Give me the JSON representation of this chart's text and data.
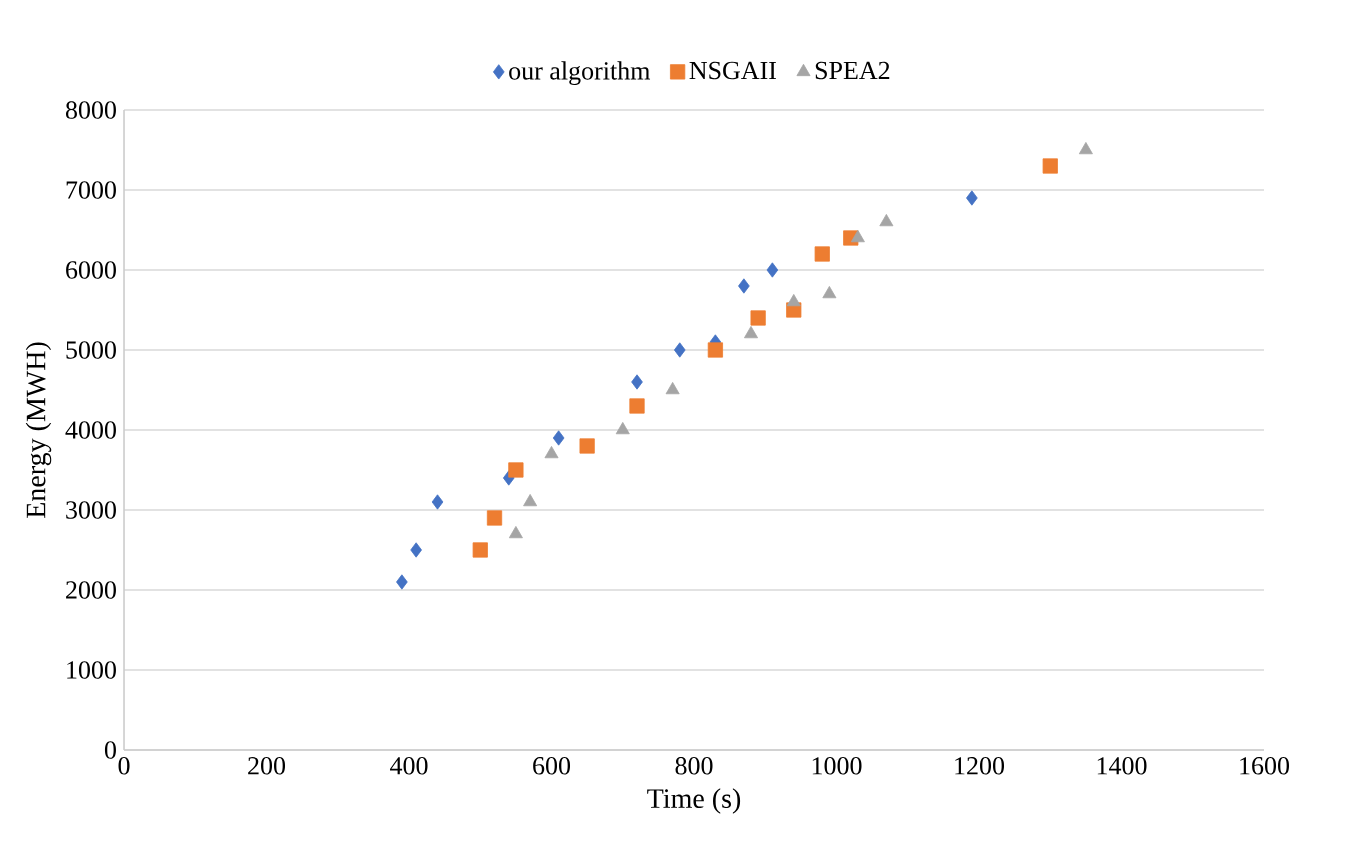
{
  "chart_data": {
    "type": "scatter",
    "xlabel": "Time (s)",
    "ylabel": "Energy (MWH)",
    "xlim": [
      0,
      1600
    ],
    "xticks": [
      0,
      200,
      400,
      600,
      800,
      1000,
      1200,
      1400,
      1600
    ],
    "ylim": [
      0,
      8000
    ],
    "yticks": [
      0,
      1000,
      2000,
      3000,
      4000,
      5000,
      6000,
      7000,
      8000
    ],
    "grid": "y",
    "legend": "top",
    "series": [
      {
        "name": "our algorithm",
        "color": "#4472c4",
        "marker": "diamond",
        "x": [
          390,
          410,
          440,
          540,
          610,
          720,
          780,
          830,
          870,
          910,
          1190
        ],
        "values": [
          2100,
          2500,
          3100,
          3400,
          3900,
          4600,
          5000,
          5100,
          5800,
          6000,
          6900
        ]
      },
      {
        "name": "NSGAII",
        "color": "#ed7d31",
        "marker": "square",
        "x": [
          500,
          520,
          550,
          650,
          720,
          830,
          890,
          940,
          980,
          1020,
          1300
        ],
        "values": [
          2500,
          2900,
          3500,
          3800,
          4300,
          5000,
          5400,
          5500,
          6200,
          6400,
          7300
        ]
      },
      {
        "name": "SPEA2",
        "color": "#a5a5a5",
        "marker": "triangle",
        "x": [
          550,
          570,
          600,
          700,
          770,
          880,
          940,
          990,
          1030,
          1070,
          1350
        ],
        "values": [
          2700,
          3100,
          3700,
          4000,
          4500,
          5200,
          5600,
          5700,
          6400,
          6600,
          7500
        ]
      }
    ]
  }
}
